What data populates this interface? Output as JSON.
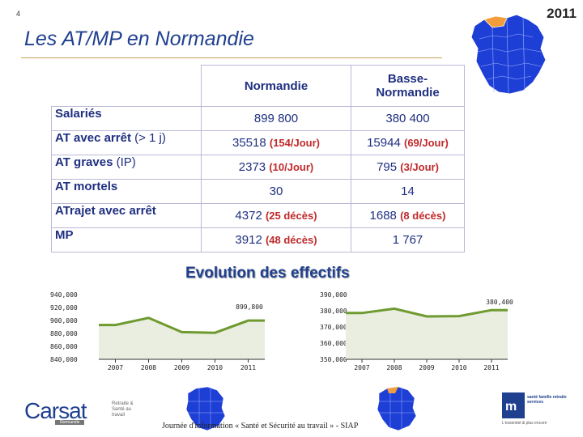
{
  "slide": {
    "number": "4",
    "year": "2011",
    "title": "Les AT/MP en Normandie"
  },
  "table": {
    "headers": {
      "col1": "Normandie",
      "col2_line1": "Basse-",
      "col2_line2": "Normandie"
    },
    "rows": [
      {
        "label": "Salariés",
        "label_sub": "",
        "v1": "899 800",
        "v1_rate": "",
        "v2": "380 400",
        "v2_rate": ""
      },
      {
        "label": "AT avec arrêt",
        "label_sub": "(> 1 j)",
        "v1": "35518",
        "v1_rate": "(154/Jour)",
        "v2": "15944",
        "v2_rate": "(69/Jour)"
      },
      {
        "label": "AT graves",
        "label_sub": "(IP)",
        "v1": "2373",
        "v1_rate": "(10/Jour)",
        "v2": "795",
        "v2_rate": "(3/Jour)"
      },
      {
        "label": "AT mortels",
        "label_sub": "",
        "v1": "30",
        "v1_rate": "",
        "v2": "14",
        "v2_rate": ""
      },
      {
        "label": "ATrajet avec arrêt",
        "label_sub": "",
        "v1": "4372",
        "v1_rate": "(25 décès)",
        "v2": "1688",
        "v2_rate": "(8 décès)"
      },
      {
        "label": "MP",
        "label_sub": "",
        "v1": "3912",
        "v1_rate": "(48 décès)",
        "v2": "1 767",
        "v2_rate": ""
      }
    ]
  },
  "evolution_title": "Evolution des effectifs",
  "chart_data": [
    {
      "type": "area",
      "categories": [
        "2007",
        "2008",
        "2009",
        "2010",
        "2011"
      ],
      "series": [
        {
          "values": [
            893000,
            904000,
            882000,
            881000,
            899800
          ]
        }
      ],
      "ylim": [
        840000,
        940000
      ],
      "ytick_labels": [
        "940,000",
        "920,000",
        "900,000",
        "880,000",
        "860,000",
        "840,000"
      ],
      "annotation": "899,800",
      "color": "#6e9a2f"
    },
    {
      "type": "area",
      "categories": [
        "2007",
        "2008",
        "2009",
        "2010",
        "2011"
      ],
      "series": [
        {
          "values": [
            378600,
            381300,
            376500,
            376700,
            380400
          ]
        }
      ],
      "ylim": [
        350000,
        390000
      ],
      "ytick_labels": [
        "390,000",
        "380,000",
        "370,000",
        "360,000",
        "350,000"
      ],
      "annotation": "380,400",
      "color": "#6e9a2f"
    }
  ],
  "footer": {
    "text": "Journée d'information « Santé et Sécurité au travail » - SIAP",
    "carsat_name": "Carsat",
    "carsat_tagline": "Retraite & Santé au travail",
    "carsat_region": "Normandie",
    "msa_text": "santé famille retraite services",
    "msa_foot": "L'essentiel & plus encore"
  },
  "colors": {
    "title": "#1f3f8f",
    "table_text": "#1f2f80",
    "rate": "#c0292b",
    "map_fill": "#1e3fd6",
    "highlight": "#f39c3a",
    "chart": "#6e9a2f"
  }
}
